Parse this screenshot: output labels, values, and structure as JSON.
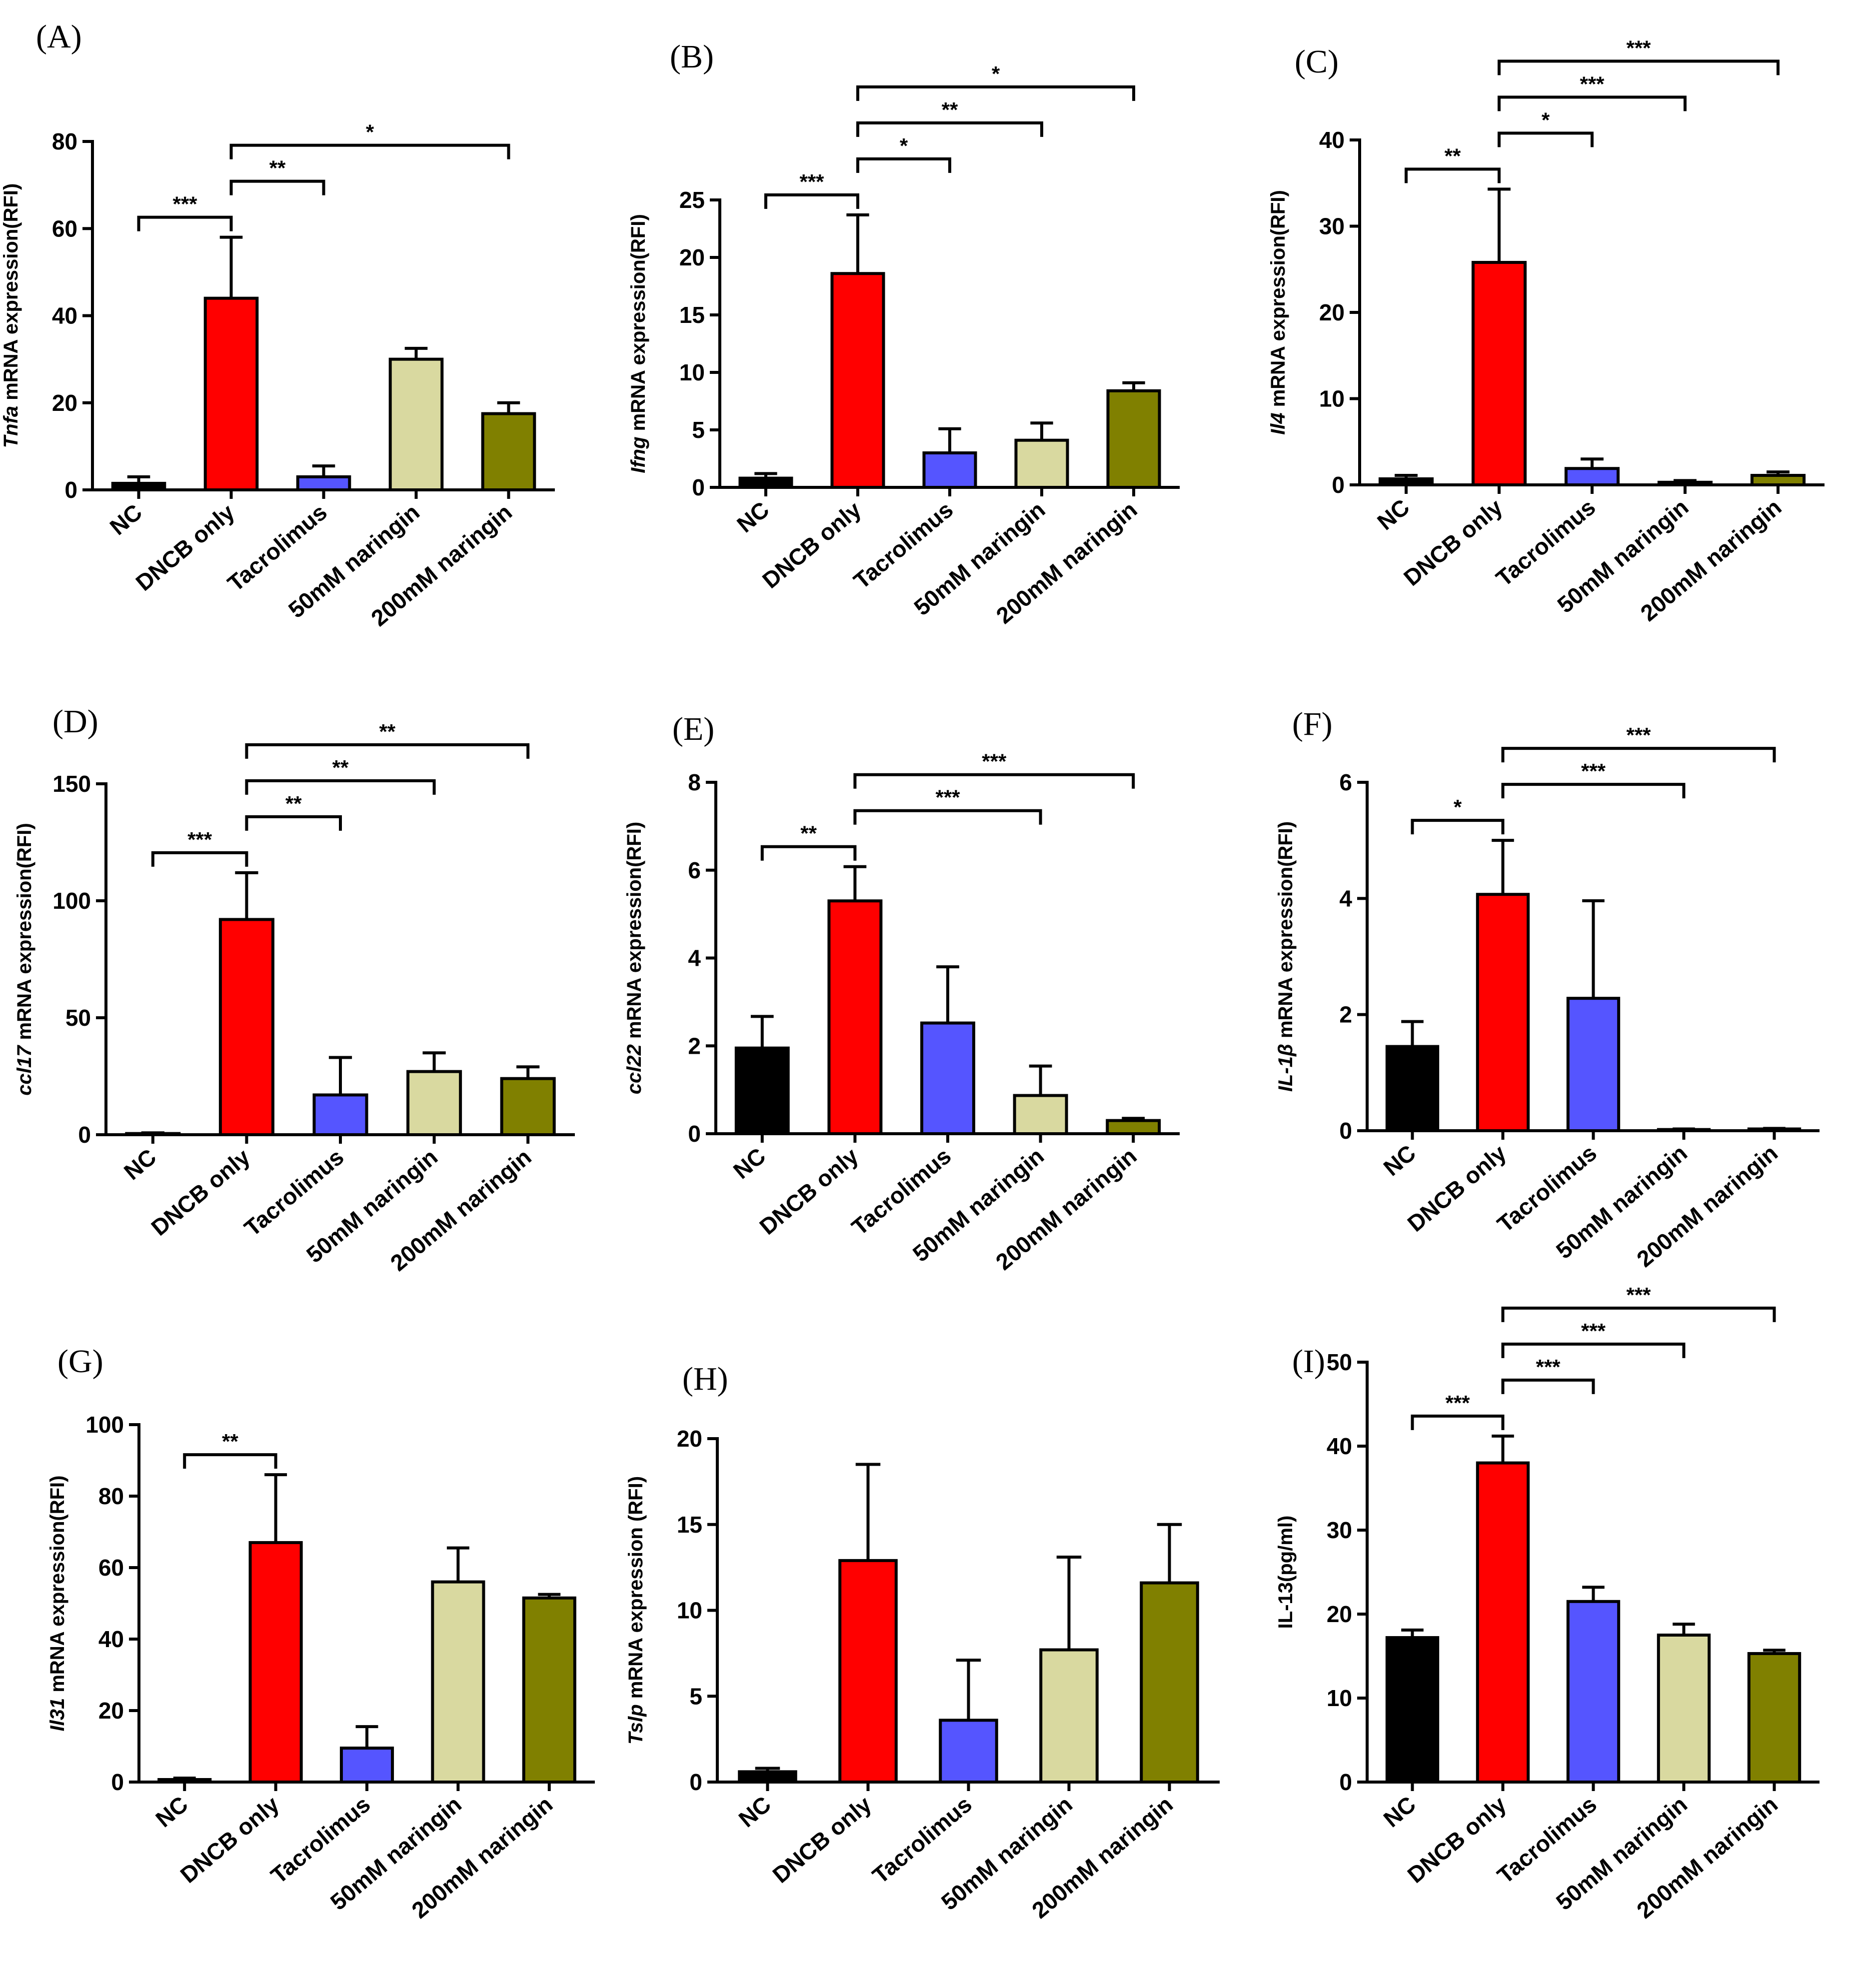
{
  "colors": {
    "NC": "#000000",
    "DNCB only": "#ff0000",
    "Tacrolimus": "#5555ff",
    "50mM naringin": "#d9d9a0",
    "200mM naringin": "#808000"
  },
  "chart_data": [
    {
      "type": "bar",
      "letter": "(A)",
      "ylabel_italic": "Tnfa",
      "ylabel_rest": " mRNA expression(RFI)",
      "categories": [
        "NC",
        "DNCB only",
        "Tacrolimus",
        "50mM naringin",
        "200mM naringin"
      ],
      "values": [
        1.5,
        44,
        3,
        30,
        17.5
      ],
      "errors": [
        1.5,
        14,
        2.5,
        2.5,
        2.5
      ],
      "ylim": [
        0,
        80
      ],
      "yticks": [
        "0",
        "20",
        "40",
        "60",
        "80"
      ],
      "sig": [
        {
          "from": 0,
          "to": 1,
          "label": "***"
        },
        {
          "from": 1,
          "to": 2,
          "label": "**"
        },
        {
          "from": 1,
          "to": 4,
          "label": "*"
        }
      ]
    },
    {
      "type": "bar",
      "letter": "(B)",
      "ylabel_italic": "Ifng",
      "ylabel_rest": " mRNA expression(RFI)",
      "categories": [
        "NC",
        "DNCB only",
        "Tacrolimus",
        "50mM naringin",
        "200mM naringin"
      ],
      "values": [
        0.8,
        18.6,
        3,
        4.1,
        8.4
      ],
      "errors": [
        0.4,
        5.1,
        2.1,
        1.5,
        0.7
      ],
      "ylim": [
        0,
        25
      ],
      "yticks": [
        "0",
        "5",
        "10",
        "15",
        "20",
        "25"
      ],
      "sig": [
        {
          "from": 0,
          "to": 1,
          "label": "***"
        },
        {
          "from": 1,
          "to": 2,
          "label": "*"
        },
        {
          "from": 1,
          "to": 3,
          "label": "**"
        },
        {
          "from": 1,
          "to": 4,
          "label": "*"
        }
      ]
    },
    {
      "type": "bar",
      "letter": "(C)",
      "ylabel_italic": "Il4",
      "ylabel_rest": " mRNA expression(RFI)",
      "categories": [
        "NC",
        "DNCB only",
        "Tacrolimus",
        "50mM naringin",
        "200mM naringin"
      ],
      "values": [
        0.7,
        25.8,
        1.9,
        0.3,
        1.1
      ],
      "errors": [
        0.4,
        8.5,
        1.1,
        0.2,
        0.4
      ],
      "ylim": [
        0,
        40
      ],
      "yticks": [
        "0",
        "10",
        "20",
        "30",
        "40"
      ],
      "sig": [
        {
          "from": 0,
          "to": 1,
          "label": "**"
        },
        {
          "from": 1,
          "to": 2,
          "label": "*"
        },
        {
          "from": 1,
          "to": 3,
          "label": "***"
        },
        {
          "from": 1,
          "to": 4,
          "label": "***"
        }
      ]
    },
    {
      "type": "bar",
      "letter": "(D)",
      "ylabel_italic": "ccl17",
      "ylabel_rest": " mRNA expression(RFI)",
      "categories": [
        "NC",
        "DNCB only",
        "Tacrolimus",
        "50mM naringin",
        "200mM naringin"
      ],
      "values": [
        0.5,
        92,
        17,
        27,
        24
      ],
      "errors": [
        0.3,
        20,
        16,
        8,
        5
      ],
      "ylim": [
        0,
        150
      ],
      "yticks": [
        "0",
        "50",
        "100",
        "150"
      ],
      "sig": [
        {
          "from": 0,
          "to": 1,
          "label": "***"
        },
        {
          "from": 1,
          "to": 2,
          "label": "**"
        },
        {
          "from": 1,
          "to": 3,
          "label": "**"
        },
        {
          "from": 1,
          "to": 4,
          "label": "**"
        }
      ]
    },
    {
      "type": "bar",
      "letter": "(E)",
      "ylabel_italic": "ccl22",
      "ylabel_rest": " mRNA expression(RFI)",
      "categories": [
        "NC",
        "DNCB only",
        "Tacrolimus",
        "50mM naringin",
        "200mM naringin"
      ],
      "values": [
        1.95,
        5.3,
        2.52,
        0.87,
        0.3
      ],
      "errors": [
        0.72,
        0.78,
        1.28,
        0.67,
        0.05
      ],
      "ylim": [
        0,
        8
      ],
      "yticks": [
        "0",
        "2",
        "4",
        "6",
        "8"
      ],
      "sig": [
        {
          "from": 0,
          "to": 1,
          "label": "**"
        },
        {
          "from": 1,
          "to": 3,
          "label": "***"
        },
        {
          "from": 1,
          "to": 4,
          "label": "***"
        }
      ]
    },
    {
      "type": "bar",
      "letter": "(F)",
      "ylabel_italic": "IL-1β",
      "ylabel_rest": " mRNA expression(RFI)",
      "categories": [
        "NC",
        "DNCB only",
        "Tacrolimus",
        "50mM naringin",
        "200mM naringin"
      ],
      "values": [
        1.45,
        4.07,
        2.28,
        0.02,
        0.03
      ],
      "errors": [
        0.43,
        0.93,
        1.68,
        0.01,
        0.01
      ],
      "ylim": [
        0,
        6
      ],
      "yticks": [
        "0",
        "2",
        "4",
        "6"
      ],
      "sig": [
        {
          "from": 0,
          "to": 1,
          "label": "*"
        },
        {
          "from": 1,
          "to": 3,
          "label": "***"
        },
        {
          "from": 1,
          "to": 4,
          "label": "***"
        }
      ]
    },
    {
      "type": "bar",
      "letter": "(G)",
      "ylabel_italic": "Il31",
      "ylabel_rest": " mRNA expression(RFI)",
      "categories": [
        "NC",
        "DNCB only",
        "Tacrolimus",
        "50mM naringin",
        "200mM naringin"
      ],
      "values": [
        0.7,
        67,
        9.5,
        56,
        51.5
      ],
      "errors": [
        0.4,
        19,
        6,
        9.5,
        1
      ],
      "ylim": [
        0,
        100
      ],
      "yticks": [
        "0",
        "20",
        "40",
        "60",
        "80",
        "100"
      ],
      "sig": [
        {
          "from": 0,
          "to": 1,
          "label": "**"
        }
      ]
    },
    {
      "type": "bar",
      "letter": "(H)",
      "ylabel_italic": "Tslp",
      "ylabel_rest": " mRNA expression  (RFI)",
      "categories": [
        "NC",
        "DNCB only",
        "Tacrolimus",
        "50mM naringin",
        "200mM naringin"
      ],
      "values": [
        0.6,
        12.9,
        3.6,
        7.7,
        11.6
      ],
      "errors": [
        0.2,
        5.6,
        3.5,
        5.4,
        3.4
      ],
      "ylim": [
        0,
        20
      ],
      "yticks": [
        "0",
        "5",
        "10",
        "15",
        "20"
      ],
      "sig": []
    },
    {
      "type": "bar",
      "letter": "(I)",
      "ylabel_italic": "",
      "ylabel_rest": "IL-13(pg/ml)",
      "categories": [
        "NC",
        "DNCB only",
        "Tacrolimus",
        "50mM naringin",
        "200mM naringin"
      ],
      "values": [
        17.2,
        38,
        21.5,
        17.5,
        15.3
      ],
      "errors": [
        0.9,
        3.2,
        1.7,
        1.3,
        0.4
      ],
      "ylim": [
        0,
        50
      ],
      "yticks": [
        "0",
        "10",
        "20",
        "30",
        "40",
        "50"
      ],
      "sig": [
        {
          "from": 0,
          "to": 1,
          "label": "***"
        },
        {
          "from": 1,
          "to": 2,
          "label": "***"
        },
        {
          "from": 1,
          "to": 3,
          "label": "***"
        },
        {
          "from": 1,
          "to": 4,
          "label": "***"
        }
      ]
    }
  ]
}
